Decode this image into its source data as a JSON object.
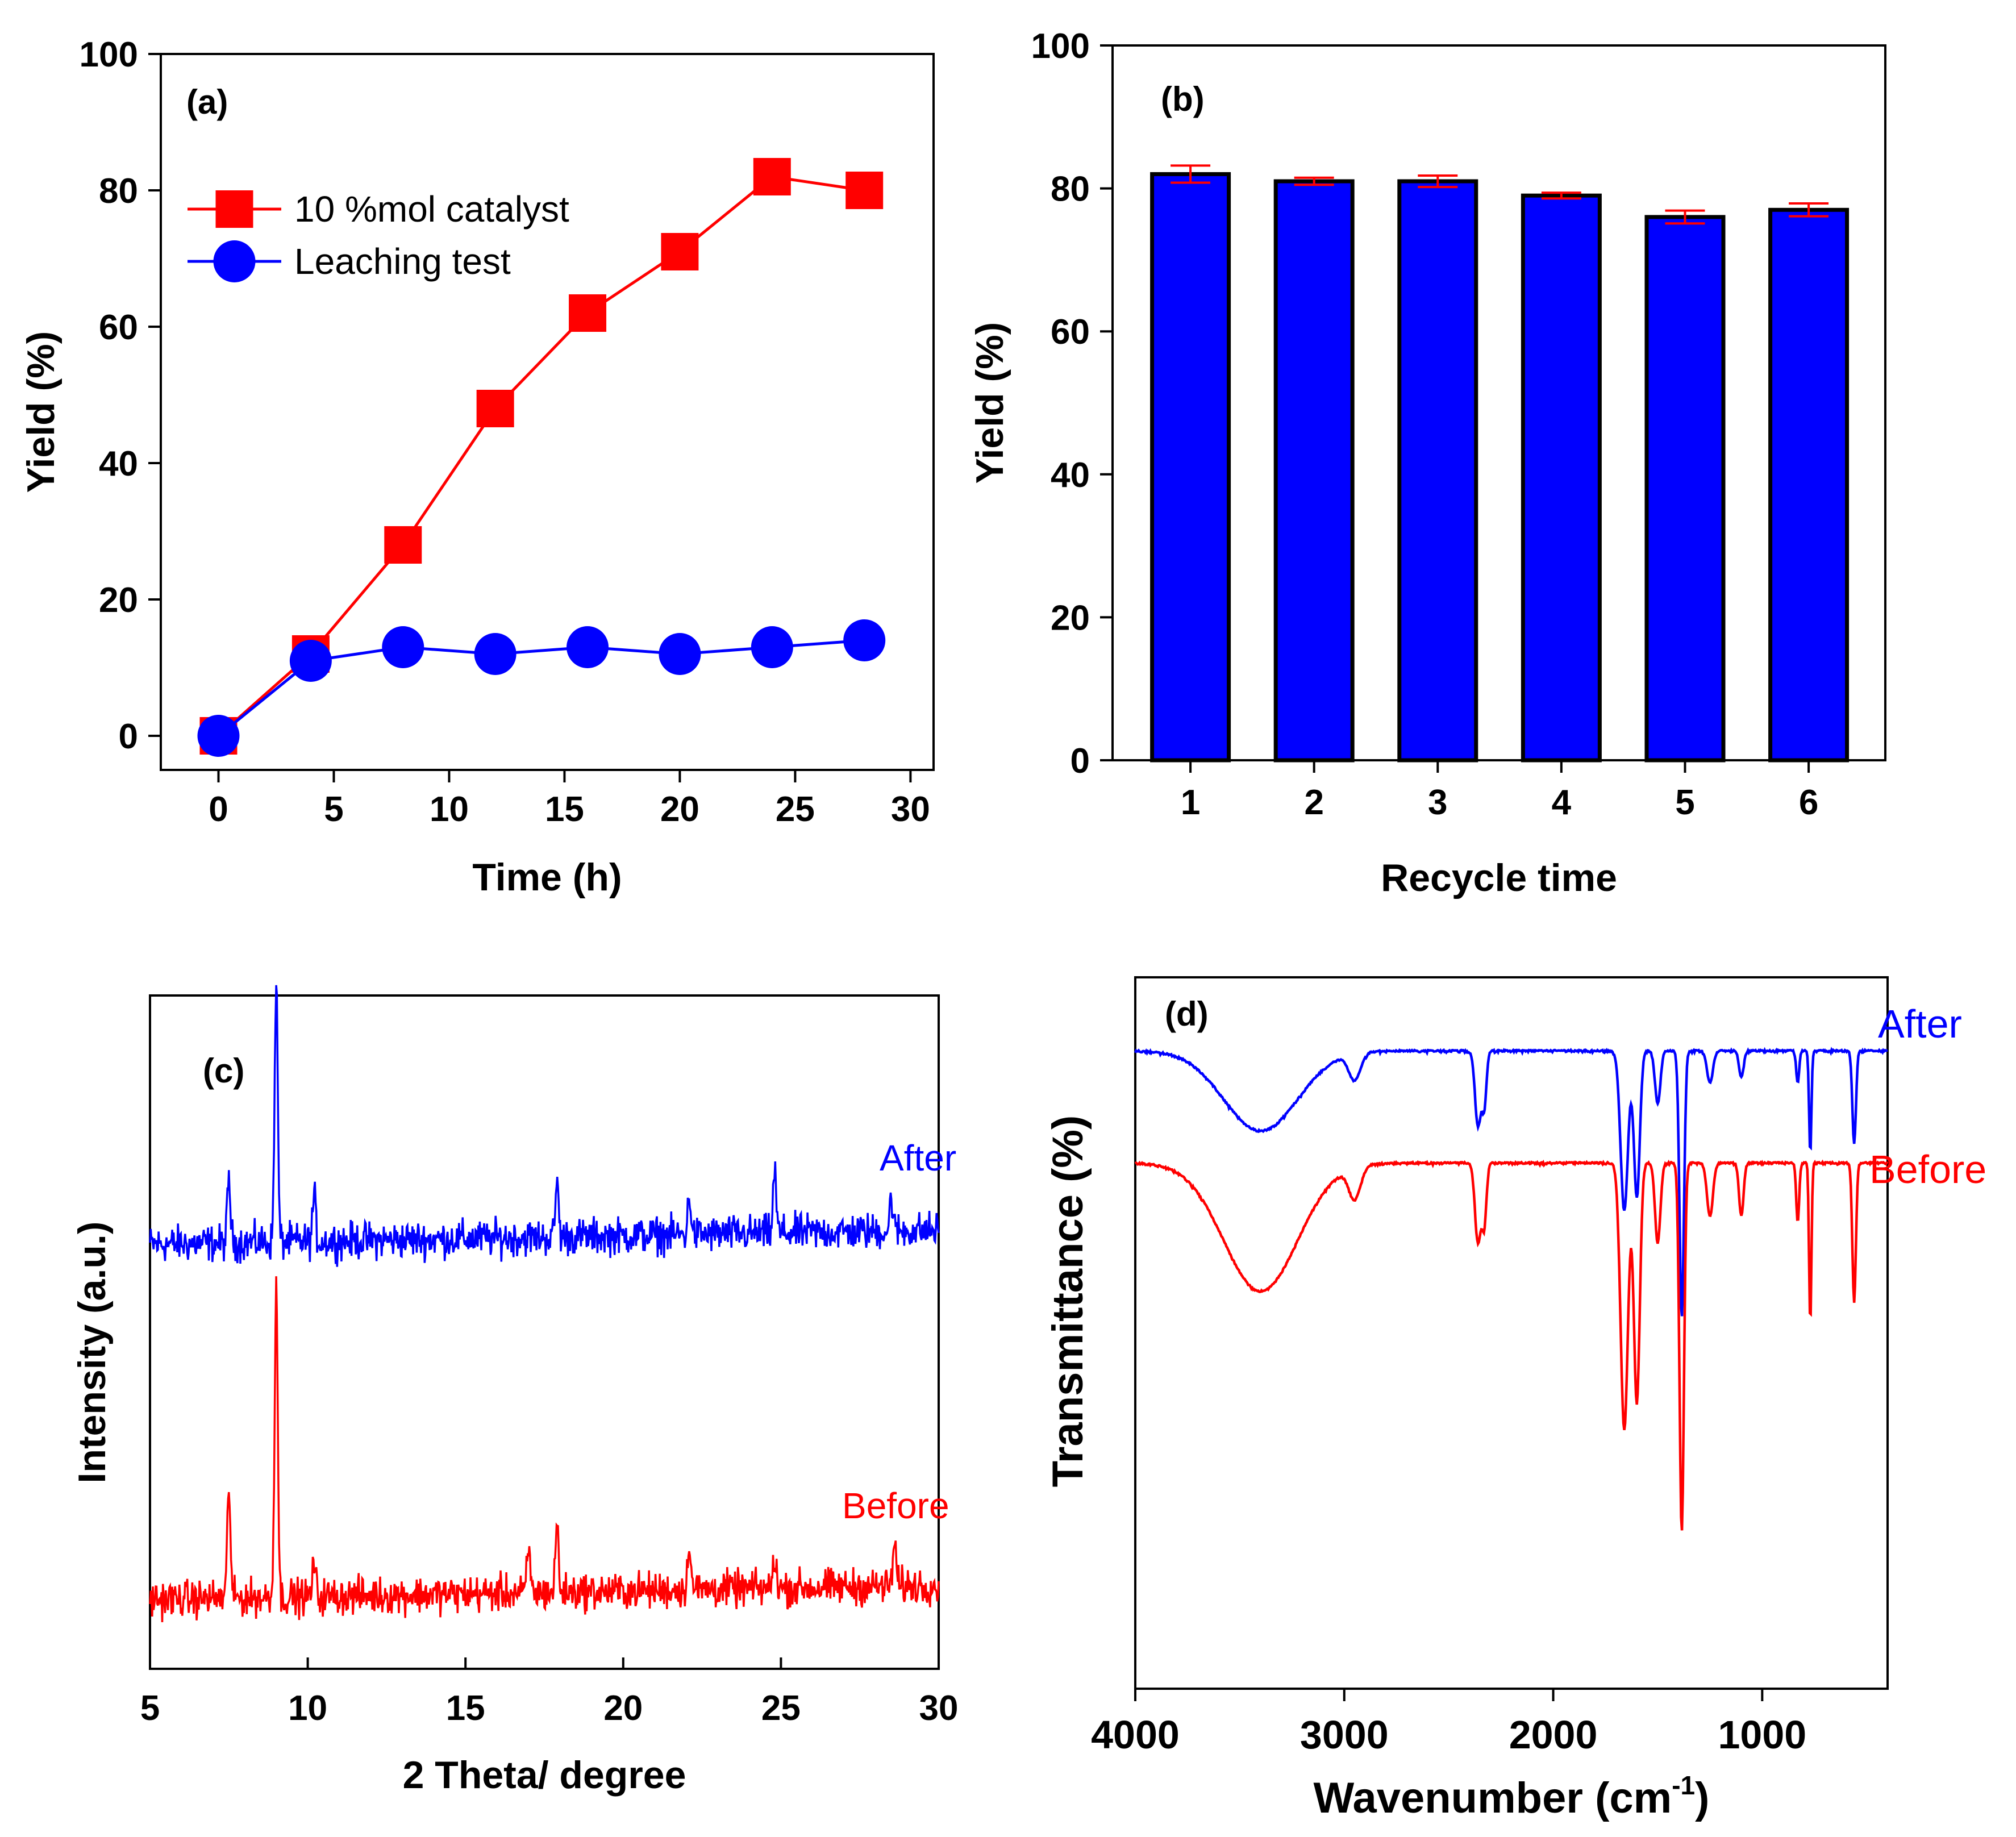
{
  "chart_data": [
    {
      "panel": "a",
      "type": "line",
      "panel_label": "(a)",
      "xlabel": "Time (h)",
      "ylabel": "Yield (%)",
      "xlim": [
        -2.5,
        31
      ],
      "ylim": [
        -5,
        100
      ],
      "xticks": [
        "0",
        "5",
        "10",
        "15",
        "20",
        "25",
        "30"
      ],
      "yticks": [
        "0",
        "20",
        "40",
        "60",
        "80",
        "100"
      ],
      "legend_position": "top-left",
      "series": [
        {
          "name": "10 %mol catalyst",
          "marker": "square",
          "color": "#ff0000",
          "x": [
            0,
            4,
            8,
            12,
            16,
            20,
            24,
            28
          ],
          "values": [
            0,
            12,
            28,
            48,
            62,
            71,
            82,
            80
          ]
        },
        {
          "name": "Leaching test",
          "marker": "circle",
          "color": "#0000ff",
          "x": [
            0,
            4,
            8,
            12,
            16,
            20,
            24,
            28
          ],
          "values": [
            0,
            11,
            13,
            12,
            13,
            12,
            13,
            14
          ]
        }
      ]
    },
    {
      "panel": "b",
      "type": "bar",
      "panel_label": "(b)",
      "xlabel": "Recycle time",
      "ylabel": "Yield (%)",
      "ylim": [
        0,
        100
      ],
      "yticks": [
        "0",
        "20",
        "40",
        "60",
        "80",
        "100"
      ],
      "categories": [
        "1",
        "2",
        "3",
        "4",
        "5",
        "6"
      ],
      "values": [
        82,
        81,
        81,
        79,
        76,
        77
      ],
      "errors": [
        1.2,
        0.5,
        0.8,
        0.4,
        0.9,
        0.9
      ],
      "bar_color": "#0000ff",
      "error_color": "#ff0000"
    },
    {
      "panel": "c",
      "type": "line",
      "panel_label": "(c)",
      "xlabel": "2 Theta/ degree",
      "ylabel": "Intensity (a.u.)",
      "xlim": [
        5,
        30
      ],
      "xticks": [
        "5",
        "10",
        "15",
        "20",
        "25",
        "30"
      ],
      "series": [
        {
          "name": "After",
          "color": "#0000ff",
          "baseline": 1.8,
          "peaks": [
            [
              7.5,
              1.1
            ],
            [
              9.0,
              4.6
            ],
            [
              10.2,
              0.8
            ],
            [
              17.9,
              1.0
            ],
            [
              22.1,
              0.7
            ],
            [
              24.8,
              1.1
            ],
            [
              28.5,
              0.6
            ]
          ]
        },
        {
          "name": "Before",
          "color": "#ff0000",
          "baseline": 0.0,
          "peaks": [
            [
              7.5,
              2.0
            ],
            [
              9.0,
              5.6
            ],
            [
              10.2,
              0.6
            ],
            [
              17.0,
              0.8
            ],
            [
              17.9,
              1.2
            ],
            [
              22.1,
              0.9
            ],
            [
              24.8,
              0.6
            ],
            [
              28.6,
              0.8
            ]
          ]
        }
      ]
    },
    {
      "panel": "d",
      "type": "line",
      "panel_label": "(d)",
      "xlabel": "Wavenumber (cm",
      "xlabel_sup": "-1",
      "xlabel_end": ")",
      "ylabel": "Transmittance (%)",
      "xlim": [
        4000,
        400
      ],
      "xticks": [
        "4000",
        "3000",
        "2000",
        "1000"
      ],
      "series": [
        {
          "name": "After",
          "color": "#0000ff",
          "offset": 0.0,
          "bands": [
            [
              3400,
              250,
              0.3
            ],
            [
              2950,
              40,
              0.1
            ],
            [
              2360,
              20,
              0.28
            ],
            [
              2330,
              15,
              0.2
            ],
            [
              1660,
              25,
              0.6
            ],
            [
              1600,
              20,
              0.55
            ],
            [
              1500,
              18,
              0.2
            ],
            [
              1385,
              15,
              1.0
            ],
            [
              1250,
              20,
              0.12
            ],
            [
              1100,
              15,
              0.1
            ],
            [
              830,
              10,
              0.12
            ],
            [
              770,
              8,
              0.38
            ],
            [
              560,
              12,
              0.35
            ]
          ]
        },
        {
          "name": "Before",
          "color": "#ff0000",
          "offset": 0.42,
          "bands": [
            [
              3400,
              250,
              0.48
            ],
            [
              2950,
              40,
              0.12
            ],
            [
              2360,
              20,
              0.3
            ],
            [
              2330,
              15,
              0.22
            ],
            [
              1660,
              25,
              1.0
            ],
            [
              1600,
              20,
              0.9
            ],
            [
              1500,
              18,
              0.3
            ],
            [
              1385,
              15,
              1.38
            ],
            [
              1250,
              20,
              0.2
            ],
            [
              1100,
              15,
              0.2
            ],
            [
              830,
              10,
              0.22
            ],
            [
              770,
              8,
              0.6
            ],
            [
              560,
              12,
              0.52
            ]
          ]
        }
      ]
    }
  ]
}
